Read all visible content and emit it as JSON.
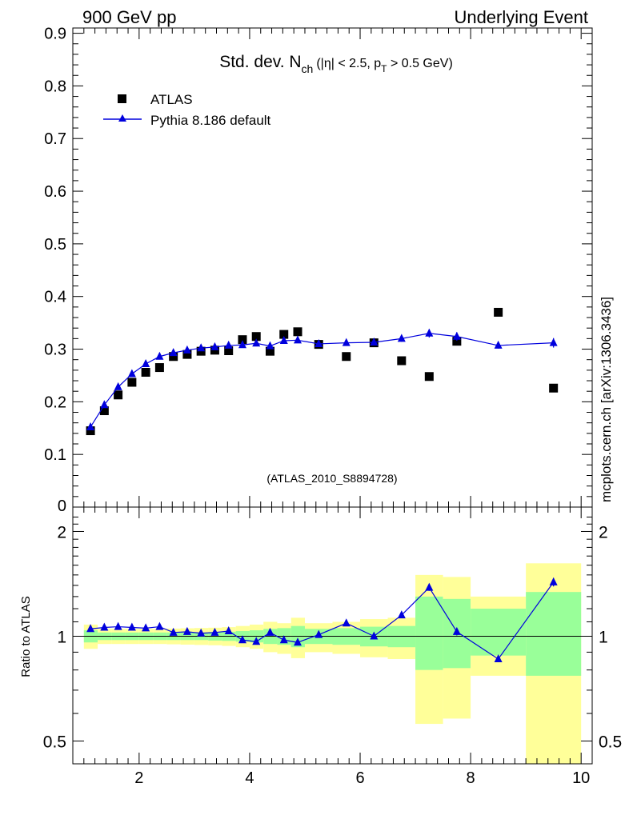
{
  "header": {
    "left": "900 GeV pp",
    "right": "Underlying Event"
  },
  "side_label": "mcplots.cern.ch [arXiv:1306.3436]",
  "colors": {
    "atlas": "#000000",
    "pythia": "#0000dd",
    "band_inner": "#99ff99",
    "band_outer": "#ffff99"
  },
  "chart_data": [
    {
      "type": "scatter",
      "title_main": "Std. dev. N",
      "title_sub": "ch",
      "title_cut1": "(|η| < 2.5, p",
      "title_cut_sub": "T",
      "title_cut2": " > 0.5 GeV)",
      "watermark": "(ATLAS_2010_S8894728)",
      "xlim": [
        0.8,
        10.2
      ],
      "ylim": [
        0,
        0.91
      ],
      "yticks": [
        0.1,
        0.2,
        0.3,
        0.4,
        0.5,
        0.6,
        0.7,
        0.8,
        0.9
      ],
      "ytick_labels": [
        "0.1",
        "0.2",
        "0.3",
        "0.4",
        "0.5",
        "0.6",
        "0.7",
        "0.8",
        "0.9"
      ],
      "y_zero_label": "0",
      "legend": [
        {
          "name": "ATLAS",
          "marker": "square"
        },
        {
          "name": "Pythia 8.186 default",
          "marker": "triangle"
        }
      ],
      "series": [
        {
          "name": "ATLAS",
          "x": [
            1.12,
            1.37,
            1.62,
            1.87,
            2.12,
            2.37,
            2.62,
            2.87,
            3.12,
            3.37,
            3.62,
            3.87,
            4.12,
            4.37,
            4.62,
            4.87,
            5.25,
            5.75,
            6.25,
            6.75,
            7.25,
            7.75,
            8.5,
            9.5
          ],
          "y": [
            0.145,
            0.183,
            0.213,
            0.237,
            0.256,
            0.265,
            0.286,
            0.29,
            0.296,
            0.298,
            0.297,
            0.318,
            0.324,
            0.296,
            0.328,
            0.333,
            0.309,
            0.286,
            0.312,
            0.278,
            0.248,
            0.315,
            0.37,
            0.226
          ]
        },
        {
          "name": "Pythia 8.186 default",
          "x": [
            1.12,
            1.37,
            1.62,
            1.87,
            2.12,
            2.37,
            2.62,
            2.87,
            3.12,
            3.37,
            3.62,
            3.87,
            4.12,
            4.37,
            4.62,
            4.87,
            5.25,
            5.75,
            6.25,
            6.75,
            7.25,
            7.75,
            8.5,
            9.5
          ],
          "y": [
            0.152,
            0.194,
            0.228,
            0.253,
            0.272,
            0.286,
            0.293,
            0.298,
            0.302,
            0.304,
            0.307,
            0.308,
            0.311,
            0.306,
            0.316,
            0.317,
            0.31,
            0.312,
            0.313,
            0.32,
            0.33,
            0.324,
            0.307,
            0.312
          ],
          "yerr": [
            0.003,
            0.003,
            0.003,
            0.003,
            0.003,
            0.003,
            0.003,
            0.003,
            0.003,
            0.003,
            0.003,
            0.003,
            0.004,
            0.004,
            0.004,
            0.004,
            0.004,
            0.004,
            0.005,
            0.006,
            0.008,
            0.008,
            0.006,
            0.009
          ]
        }
      ]
    },
    {
      "type": "scatter",
      "ylabel": "Ratio to ATLAS",
      "xlim": [
        0.8,
        10.2
      ],
      "ylim": [
        0.43,
        2.35
      ],
      "log_y": true,
      "xticks": [
        2,
        4,
        6,
        8,
        10
      ],
      "xtick_labels": [
        "2",
        "4",
        "6",
        "8",
        "10"
      ],
      "yticks": [
        0.5,
        1,
        2
      ],
      "ytick_labels": [
        "0.5",
        "1",
        "2"
      ],
      "bins": [
        {
          "lo": 1.0,
          "hi": 1.25,
          "inner": [
            0.96,
            1.04
          ],
          "outer": [
            0.92,
            1.08
          ]
        },
        {
          "lo": 1.25,
          "hi": 1.5,
          "inner": [
            0.975,
            1.025
          ],
          "outer": [
            0.95,
            1.05
          ]
        },
        {
          "lo": 1.5,
          "hi": 1.75,
          "inner": [
            0.975,
            1.025
          ],
          "outer": [
            0.95,
            1.05
          ]
        },
        {
          "lo": 1.75,
          "hi": 2.0,
          "inner": [
            0.975,
            1.025
          ],
          "outer": [
            0.95,
            1.05
          ]
        },
        {
          "lo": 2.0,
          "hi": 2.25,
          "inner": [
            0.975,
            1.025
          ],
          "outer": [
            0.95,
            1.05
          ]
        },
        {
          "lo": 2.25,
          "hi": 2.5,
          "inner": [
            0.975,
            1.025
          ],
          "outer": [
            0.95,
            1.05
          ]
        },
        {
          "lo": 2.5,
          "hi": 2.75,
          "inner": [
            0.975,
            1.025
          ],
          "outer": [
            0.948,
            1.052
          ]
        },
        {
          "lo": 2.75,
          "hi": 3.0,
          "inner": [
            0.975,
            1.025
          ],
          "outer": [
            0.946,
            1.054
          ]
        },
        {
          "lo": 3.0,
          "hi": 3.25,
          "inner": [
            0.975,
            1.025
          ],
          "outer": [
            0.944,
            1.056
          ]
        },
        {
          "lo": 3.25,
          "hi": 3.5,
          "inner": [
            0.972,
            1.028
          ],
          "outer": [
            0.942,
            1.058
          ]
        },
        {
          "lo": 3.5,
          "hi": 3.75,
          "inner": [
            0.97,
            1.03
          ],
          "outer": [
            0.938,
            1.062
          ]
        },
        {
          "lo": 3.75,
          "hi": 4.0,
          "inner": [
            0.965,
            1.035
          ],
          "outer": [
            0.93,
            1.07
          ]
        },
        {
          "lo": 4.0,
          "hi": 4.25,
          "inner": [
            0.96,
            1.04
          ],
          "outer": [
            0.92,
            1.08
          ]
        },
        {
          "lo": 4.25,
          "hi": 4.5,
          "inner": [
            0.95,
            1.05
          ],
          "outer": [
            0.9,
            1.1
          ]
        },
        {
          "lo": 4.5,
          "hi": 4.75,
          "inner": [
            0.945,
            1.055
          ],
          "outer": [
            0.89,
            1.09
          ]
        },
        {
          "lo": 4.75,
          "hi": 5.0,
          "inner": [
            0.93,
            1.07
          ],
          "outer": [
            0.865,
            1.13
          ]
        },
        {
          "lo": 5.0,
          "hi": 5.5,
          "inner": [
            0.95,
            1.05
          ],
          "outer": [
            0.9,
            1.09
          ]
        },
        {
          "lo": 5.5,
          "hi": 6.0,
          "inner": [
            0.945,
            1.055
          ],
          "outer": [
            0.89,
            1.1
          ]
        },
        {
          "lo": 6.0,
          "hi": 6.5,
          "inner": [
            0.935,
            1.065
          ],
          "outer": [
            0.87,
            1.12
          ]
        },
        {
          "lo": 6.5,
          "hi": 7.0,
          "inner": [
            0.93,
            1.07
          ],
          "outer": [
            0.86,
            1.13
          ]
        },
        {
          "lo": 7.0,
          "hi": 7.5,
          "inner": [
            0.8,
            1.3
          ],
          "outer": [
            0.56,
            1.5
          ]
        },
        {
          "lo": 7.5,
          "hi": 8.0,
          "inner": [
            0.81,
            1.28
          ],
          "outer": [
            0.58,
            1.48
          ]
        },
        {
          "lo": 8.0,
          "hi": 9.0,
          "inner": [
            0.88,
            1.2
          ],
          "outer": [
            0.77,
            1.3
          ]
        },
        {
          "lo": 9.0,
          "hi": 10.0,
          "inner": [
            0.77,
            1.34
          ],
          "outer": [
            0.43,
            1.62
          ]
        }
      ],
      "series": [
        {
          "name": "Pythia 8.186 default",
          "x": [
            1.12,
            1.37,
            1.62,
            1.87,
            2.12,
            2.37,
            2.62,
            2.87,
            3.12,
            3.37,
            3.62,
            3.87,
            4.12,
            4.37,
            4.62,
            4.87,
            5.25,
            5.75,
            6.25,
            6.75,
            7.25,
            7.75,
            8.5,
            9.5
          ],
          "y": [
            1.05,
            1.06,
            1.065,
            1.06,
            1.055,
            1.065,
            1.025,
            1.03,
            1.02,
            1.025,
            1.035,
            0.975,
            0.965,
            1.025,
            0.975,
            0.96,
            1.01,
            1.09,
            1.0,
            1.15,
            1.38,
            1.03,
            0.86,
            1.43
          ],
          "yerr": [
            0.01,
            0.01,
            0.01,
            0.01,
            0.01,
            0.01,
            0.01,
            0.01,
            0.01,
            0.01,
            0.01,
            0.01,
            0.01,
            0.01,
            0.01,
            0.01,
            0.01,
            0.012,
            0.012,
            0.015,
            0.03,
            0.025,
            0.015,
            0.04
          ]
        }
      ]
    }
  ]
}
